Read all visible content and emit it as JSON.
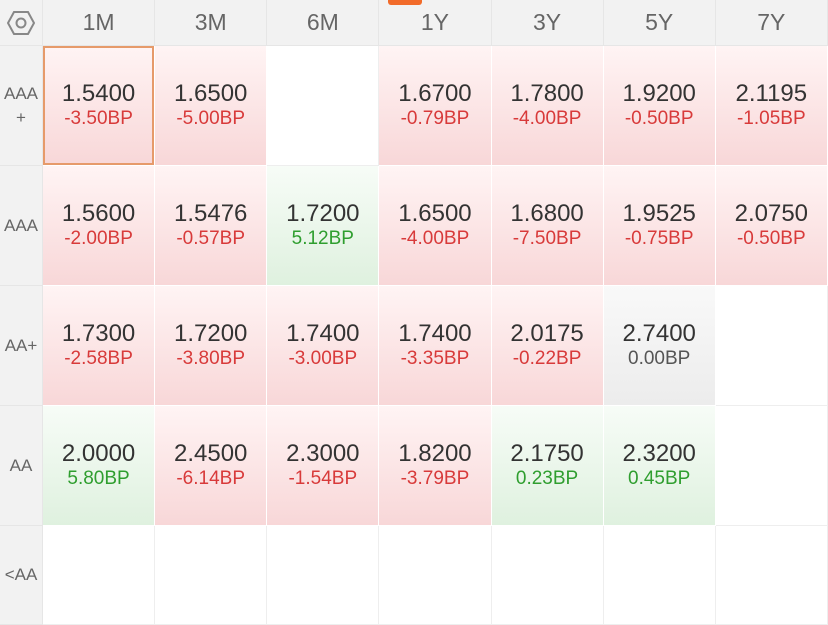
{
  "columns": [
    "1M",
    "3M",
    "6M",
    "1Y",
    "3Y",
    "5Y",
    "7Y"
  ],
  "rows": [
    {
      "label": "AAA\n+",
      "cells": [
        {
          "value": "1.5400",
          "change": "-3.50BP",
          "trend": "down",
          "selected": true
        },
        {
          "value": "1.6500",
          "change": "-5.00BP",
          "trend": "down"
        },
        null,
        {
          "value": "1.6700",
          "change": "-0.79BP",
          "trend": "down"
        },
        {
          "value": "1.7800",
          "change": "-4.00BP",
          "trend": "down"
        },
        {
          "value": "1.9200",
          "change": "-0.50BP",
          "trend": "down"
        },
        {
          "value": "2.1195",
          "change": "-1.05BP",
          "trend": "down"
        }
      ]
    },
    {
      "label": "AAA",
      "cells": [
        {
          "value": "1.5600",
          "change": "-2.00BP",
          "trend": "down"
        },
        {
          "value": "1.5476",
          "change": "-0.57BP",
          "trend": "down"
        },
        {
          "value": "1.7200",
          "change": "5.12BP",
          "trend": "up"
        },
        {
          "value": "1.6500",
          "change": "-4.00BP",
          "trend": "down"
        },
        {
          "value": "1.6800",
          "change": "-7.50BP",
          "trend": "down"
        },
        {
          "value": "1.9525",
          "change": "-0.75BP",
          "trend": "down"
        },
        {
          "value": "2.0750",
          "change": "-0.50BP",
          "trend": "down"
        }
      ]
    },
    {
      "label": "AA+",
      "cells": [
        {
          "value": "1.7300",
          "change": "-2.58BP",
          "trend": "down"
        },
        {
          "value": "1.7200",
          "change": "-3.80BP",
          "trend": "down"
        },
        {
          "value": "1.7400",
          "change": "-3.00BP",
          "trend": "down"
        },
        {
          "value": "1.7400",
          "change": "-3.35BP",
          "trend": "down"
        },
        {
          "value": "2.0175",
          "change": "-0.22BP",
          "trend": "down"
        },
        {
          "value": "2.7400",
          "change": "0.00BP",
          "trend": "flat"
        },
        null
      ]
    },
    {
      "label": "AA",
      "cells": [
        {
          "value": "2.0000",
          "change": "5.80BP",
          "trend": "up"
        },
        {
          "value": "2.4500",
          "change": "-6.14BP",
          "trend": "down"
        },
        {
          "value": "2.3000",
          "change": "-1.54BP",
          "trend": "down"
        },
        {
          "value": "1.8200",
          "change": "-3.79BP",
          "trend": "down"
        },
        {
          "value": "2.1750",
          "change": "0.23BP",
          "trend": "up"
        },
        {
          "value": "2.3200",
          "change": "0.45BP",
          "trend": "up"
        },
        null
      ]
    },
    {
      "label": "<AA",
      "cells": [
        null,
        null,
        null,
        null,
        null,
        null,
        null
      ]
    }
  ],
  "corner_icon": "hexagon-settings-icon",
  "colors": {
    "down_text": "#d83a3a",
    "up_text": "#2f9e2f",
    "accent": "#f26b2a",
    "selected_border": "#e69a6a"
  }
}
